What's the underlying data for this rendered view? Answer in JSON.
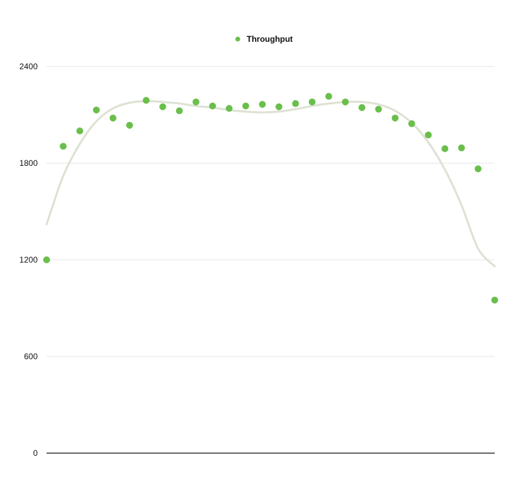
{
  "chart_data": {
    "type": "scatter",
    "title": "",
    "xlabel": "",
    "ylabel": "",
    "ylim": [
      0,
      2400
    ],
    "yticks": [
      0,
      600,
      1200,
      1800,
      2400
    ],
    "grid": true,
    "legend_position": "top-center",
    "series": [
      {
        "name": "Throughput",
        "color": "#6abf4b",
        "x": [
          1,
          2,
          3,
          4,
          5,
          6,
          7,
          8,
          9,
          10,
          11,
          12,
          13,
          14,
          15,
          16,
          17,
          18,
          19,
          20,
          21,
          22,
          23,
          24,
          25,
          26,
          27,
          28
        ],
        "values": [
          1200,
          1905,
          2000,
          2130,
          2080,
          2035,
          2190,
          2150,
          2125,
          2180,
          2155,
          2140,
          2155,
          2165,
          2150,
          2170,
          2180,
          2215,
          2180,
          2145,
          2135,
          2080,
          2045,
          1975,
          1890,
          1895,
          1765,
          950
        ]
      }
    ],
    "trendline": {
      "color": "#dde2d3",
      "type": "polynomial fit",
      "x": [
        1,
        2,
        3,
        4,
        5,
        6,
        7,
        8,
        9,
        10,
        11,
        12,
        13,
        14,
        15,
        16,
        17,
        18,
        19,
        20,
        21,
        22,
        23,
        24,
        25,
        26,
        27,
        28
      ],
      "values": [
        1420,
        1720,
        1920,
        2060,
        2140,
        2175,
        2185,
        2180,
        2170,
        2155,
        2145,
        2130,
        2120,
        2115,
        2120,
        2135,
        2155,
        2170,
        2180,
        2180,
        2165,
        2125,
        2050,
        1930,
        1760,
        1540,
        1270,
        1160
      ]
    }
  }
}
